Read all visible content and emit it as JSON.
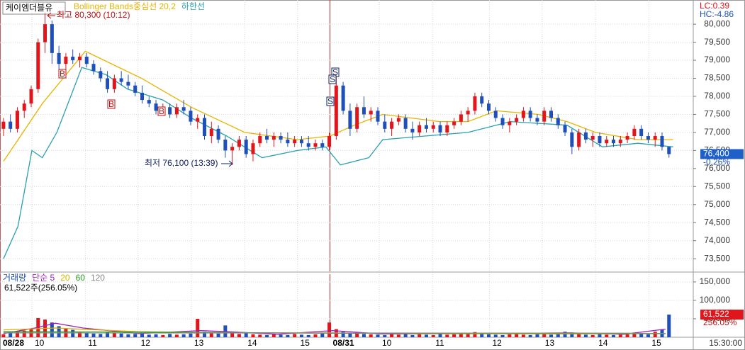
{
  "header": {
    "lc": "LC:0.39",
    "hc": "HC:-4.86",
    "time": "15:30:00"
  },
  "chart_data": [
    {
      "type": "candlestick",
      "title": "케이엠더블유",
      "up_color": "#e0161c",
      "down_color": "#1f4fb8",
      "grid": true,
      "xlim": [
        0,
        100
      ],
      "ylim": [
        73150,
        80670
      ],
      "yticks": [
        {
          "value": 73500,
          "label": "73,500"
        },
        {
          "value": 74000,
          "label": "74,000"
        },
        {
          "value": 74500,
          "label": "74,500"
        },
        {
          "value": 75000,
          "label": "75,000"
        },
        {
          "value": 75500,
          "label": "75,500"
        },
        {
          "value": 76000,
          "label": "76,000"
        },
        {
          "value": 76500,
          "label": "76,500"
        },
        {
          "value": 77000,
          "label": "77,000"
        },
        {
          "value": 77500,
          "label": "77,500"
        },
        {
          "value": 78000,
          "label": "78,000"
        },
        {
          "value": 78500,
          "label": "78,500"
        },
        {
          "value": 79000,
          "label": "79,000"
        },
        {
          "value": 79500,
          "label": "79,500"
        },
        {
          "value": 80000,
          "label": "80,000"
        }
      ],
      "ohlc": [
        [
          77100,
          77400,
          76900,
          77300
        ],
        [
          77300,
          77500,
          77000,
          77100
        ],
        [
          77100,
          77700,
          77000,
          77600
        ],
        [
          77600,
          77900,
          77400,
          77800
        ],
        [
          77800,
          78300,
          77700,
          78200
        ],
        [
          78200,
          79600,
          78100,
          79500
        ],
        [
          79500,
          80300,
          79200,
          80000
        ],
        [
          80000,
          80100,
          78900,
          79200
        ],
        [
          79200,
          79400,
          78700,
          78900
        ],
        [
          78900,
          79200,
          78700,
          79100
        ],
        [
          79100,
          79300,
          78900,
          79000
        ],
        [
          79000,
          79200,
          78800,
          79100
        ],
        [
          79100,
          79200,
          78800,
          78900
        ],
        [
          78900,
          79000,
          78600,
          78700
        ],
        [
          78700,
          78800,
          78400,
          78500
        ],
        [
          78500,
          78700,
          78100,
          78200
        ],
        [
          78200,
          78600,
          78100,
          78500
        ],
        [
          78500,
          78700,
          78300,
          78400
        ],
        [
          78400,
          78600,
          78200,
          78300
        ],
        [
          78300,
          78400,
          78000,
          78100
        ],
        [
          78100,
          78300,
          77800,
          77900
        ],
        [
          77900,
          78000,
          77700,
          77800
        ],
        [
          77800,
          77900,
          77500,
          77600
        ],
        [
          77600,
          77800,
          77500,
          77700
        ],
        [
          77700,
          77800,
          77400,
          77500
        ],
        [
          77500,
          77800,
          77400,
          77700
        ],
        [
          77700,
          77900,
          77500,
          77600
        ],
        [
          77600,
          77700,
          77200,
          77300
        ],
        [
          77300,
          77500,
          77100,
          77400
        ],
        [
          77400,
          77500,
          76800,
          76900
        ],
        [
          76900,
          77300,
          76700,
          77100
        ],
        [
          77100,
          77200,
          76700,
          76800
        ],
        [
          76800,
          76900,
          76300,
          76500
        ],
        [
          76500,
          76700,
          76100,
          76600
        ],
        [
          76600,
          76900,
          76500,
          76800
        ],
        [
          76800,
          76900,
          76300,
          76400
        ],
        [
          76400,
          76800,
          76200,
          76700
        ],
        [
          76700,
          77000,
          76600,
          76900
        ],
        [
          76900,
          77100,
          76700,
          76800
        ],
        [
          76800,
          77000,
          76600,
          76900
        ],
        [
          76900,
          77000,
          76700,
          76800
        ],
        [
          76800,
          77000,
          76600,
          76700
        ],
        [
          76700,
          76900,
          76600,
          76800
        ],
        [
          76800,
          76900,
          76600,
          76700
        ],
        [
          76700,
          76900,
          76500,
          76600
        ],
        [
          76600,
          76800,
          76500,
          76700
        ],
        [
          76700,
          76800,
          76500,
          76600
        ],
        [
          76600,
          77000,
          76500,
          76900
        ],
        [
          76900,
          78600,
          76800,
          78300
        ],
        [
          78300,
          78400,
          77500,
          77600
        ],
        [
          77600,
          77800,
          76900,
          77100
        ],
        [
          77100,
          77800,
          77000,
          77700
        ],
        [
          77700,
          78000,
          77400,
          77500
        ],
        [
          77500,
          77700,
          77300,
          77600
        ],
        [
          77600,
          77700,
          77200,
          77300
        ],
        [
          77300,
          77500,
          77000,
          77100
        ],
        [
          77100,
          77400,
          76900,
          77300
        ],
        [
          77300,
          77500,
          77200,
          77400
        ],
        [
          77400,
          77500,
          77000,
          77100
        ],
        [
          77100,
          77300,
          76800,
          77000
        ],
        [
          77000,
          77300,
          76900,
          77200
        ],
        [
          77200,
          77400,
          77000,
          77100
        ],
        [
          77100,
          77300,
          77000,
          77200
        ],
        [
          77200,
          77300,
          76900,
          77000
        ],
        [
          77000,
          77300,
          76900,
          77200
        ],
        [
          77200,
          77400,
          77100,
          77300
        ],
        [
          77300,
          77600,
          77200,
          77500
        ],
        [
          77500,
          77700,
          77300,
          77600
        ],
        [
          77600,
          78100,
          77500,
          78000
        ],
        [
          78000,
          78100,
          77700,
          77800
        ],
        [
          77800,
          77900,
          77500,
          77600
        ],
        [
          77600,
          77700,
          77300,
          77400
        ],
        [
          77400,
          77500,
          77100,
          77200
        ],
        [
          77200,
          77400,
          77000,
          77300
        ],
        [
          77300,
          77500,
          77200,
          77400
        ],
        [
          77400,
          77700,
          77300,
          77600
        ],
        [
          77600,
          77700,
          77300,
          77400
        ],
        [
          77400,
          77500,
          77200,
          77300
        ],
        [
          77300,
          77700,
          77200,
          77600
        ],
        [
          77600,
          77700,
          77300,
          77400
        ],
        [
          77400,
          77500,
          77100,
          77200
        ],
        [
          77200,
          77300,
          76900,
          77000
        ],
        [
          77000,
          77100,
          76400,
          76600
        ],
        [
          76600,
          77100,
          76500,
          77000
        ],
        [
          77000,
          77100,
          76700,
          76800
        ],
        [
          76800,
          77000,
          76600,
          76900
        ],
        [
          76900,
          77000,
          76600,
          76700
        ],
        [
          76700,
          76900,
          76600,
          76800
        ],
        [
          76800,
          76900,
          76600,
          76700
        ],
        [
          76700,
          76900,
          76600,
          76800
        ],
        [
          76800,
          77000,
          76700,
          76900
        ],
        [
          76900,
          77200,
          76800,
          77100
        ],
        [
          77100,
          77200,
          76800,
          76900
        ],
        [
          76900,
          77000,
          76700,
          76800
        ],
        [
          76800,
          77000,
          76600,
          76900
        ],
        [
          76900,
          77000,
          76500,
          76600
        ],
        [
          76600,
          76600,
          76300,
          76400
        ]
      ],
      "series": [
        {
          "name": "Bollinger Bands중심선 20,2",
          "color": "#e8b400",
          "x": [
            0.5,
            6.1,
            12.3,
            20.4,
            27.6,
            35.3,
            42.9,
            47.6,
            51.1,
            55.2,
            63.4,
            67.5,
            71.6,
            77.7,
            81.8,
            85.9,
            92.0,
            97.1
          ],
          "values": [
            76200,
            77800,
            79250,
            78500,
            77700,
            77000,
            76800,
            76900,
            77200,
            77500,
            77300,
            77300,
            77600,
            77500,
            77300,
            77000,
            76800,
            76800
          ]
        },
        {
          "name": "하한선",
          "color": "#2aa0b0",
          "x": [
            0.5,
            2.6,
            4.6,
            6.1,
            8.2,
            10.2,
            11.8,
            15.3,
            18.4,
            23.5,
            27.6,
            32.7,
            37.8,
            42.9,
            47.0,
            49.1,
            53.2,
            55.2,
            61.3,
            67.5,
            73.6,
            81.8,
            86.9,
            92.0,
            97.1
          ],
          "values": [
            73500,
            74400,
            76500,
            76300,
            77000,
            78000,
            78800,
            78600,
            78200,
            77900,
            77400,
            76900,
            76300,
            76500,
            76600,
            76100,
            76300,
            76800,
            76900,
            77000,
            77300,
            77200,
            76600,
            76700,
            76600
          ]
        }
      ],
      "high_label": "최고 80,300 (10:12)",
      "low_label": "최저 76,100 (13:39)",
      "signals": [
        "B",
        "B",
        "B",
        "S",
        "S",
        "S"
      ],
      "last_label": {
        "value": 76400,
        "label": "76,400"
      },
      "change_label": "-0.26%"
    },
    {
      "type": "bar",
      "title": "거래량",
      "xlim": [
        0,
        100
      ],
      "ylim": [
        0,
        171000
      ],
      "grid": true,
      "xticks": [
        {
          "value": 0,
          "label": "08/28"
        },
        {
          "value": 4.6,
          "label": "10"
        },
        {
          "value": 12.3,
          "label": "11"
        },
        {
          "value": 19.9,
          "label": "12"
        },
        {
          "value": 27.6,
          "label": "13"
        },
        {
          "value": 35.3,
          "label": "14"
        },
        {
          "value": 42.9,
          "label": "15"
        },
        {
          "value": 47.6,
          "label": "08/31"
        },
        {
          "value": 54.7,
          "label": "10"
        },
        {
          "value": 62.4,
          "label": "11"
        },
        {
          "value": 70.6,
          "label": "12"
        },
        {
          "value": 78.2,
          "label": "13"
        },
        {
          "value": 85.9,
          "label": "14"
        },
        {
          "value": 93.6,
          "label": "15"
        }
      ],
      "yticks": [
        {
          "value": 50000,
          "label": "50,000"
        },
        {
          "value": 100000,
          "label": "100,000"
        },
        {
          "value": 150000,
          "label": "150,000"
        }
      ],
      "values": [
        8000,
        12000,
        15000,
        18000,
        22000,
        52000,
        48000,
        40000,
        30000,
        25000,
        20000,
        15000,
        12000,
        10000,
        9000,
        15000,
        12000,
        10000,
        8000,
        9000,
        10000,
        7000,
        8000,
        6000,
        9000,
        7000,
        8000,
        10000,
        50000,
        15000,
        12000,
        10000,
        32000,
        14000,
        9000,
        12000,
        8000,
        7000,
        6000,
        8000,
        7000,
        6000,
        9000,
        7000,
        6000,
        8000,
        10000,
        40000,
        22000,
        15000,
        10000,
        12000,
        9000,
        8000,
        7000,
        6000,
        8000,
        7000,
        9000,
        6000,
        8000,
        7000,
        6000,
        9000,
        7000,
        8000,
        10000,
        12000,
        14000,
        9000,
        8000,
        7000,
        6000,
        8000,
        9000,
        7000,
        6000,
        8000,
        10000,
        7000,
        12000,
        15000,
        13000,
        9000,
        7000,
        6000,
        8000,
        7000,
        6000,
        7000,
        8000,
        12000,
        10000,
        8000,
        15000,
        20000,
        61522
      ],
      "series": [
        {
          "name": "단순 5",
          "color": "#a020c0",
          "x": [
            0.5,
            5,
            8,
            12,
            20,
            29,
            33,
            40,
            48,
            55,
            70,
            82,
            90,
            96
          ],
          "values": [
            10000,
            25000,
            38000,
            25000,
            10000,
            18000,
            15000,
            8000,
            18000,
            9000,
            10000,
            12000,
            8000,
            22000
          ]
        },
        {
          "name": "20",
          "color": "#d8b000",
          "x": [
            0.5,
            8,
            20,
            35,
            48,
            60,
            80,
            96
          ],
          "values": [
            20000,
            25000,
            15000,
            12000,
            12000,
            10000,
            9000,
            10000
          ]
        },
        {
          "name": "60",
          "color": "#2a9a2a",
          "x": [
            0.5,
            20,
            48,
            96
          ],
          "values": [
            15000,
            14000,
            11000,
            10000
          ]
        },
        {
          "name": "120",
          "color": "#888888",
          "x": [
            0.5,
            96
          ],
          "values": [
            12000,
            11000
          ]
        }
      ],
      "summary": "61,522주(256.05%)",
      "last_label": {
        "value": 61522,
        "label": "61,522"
      },
      "ratio_label": "256.05%"
    }
  ]
}
